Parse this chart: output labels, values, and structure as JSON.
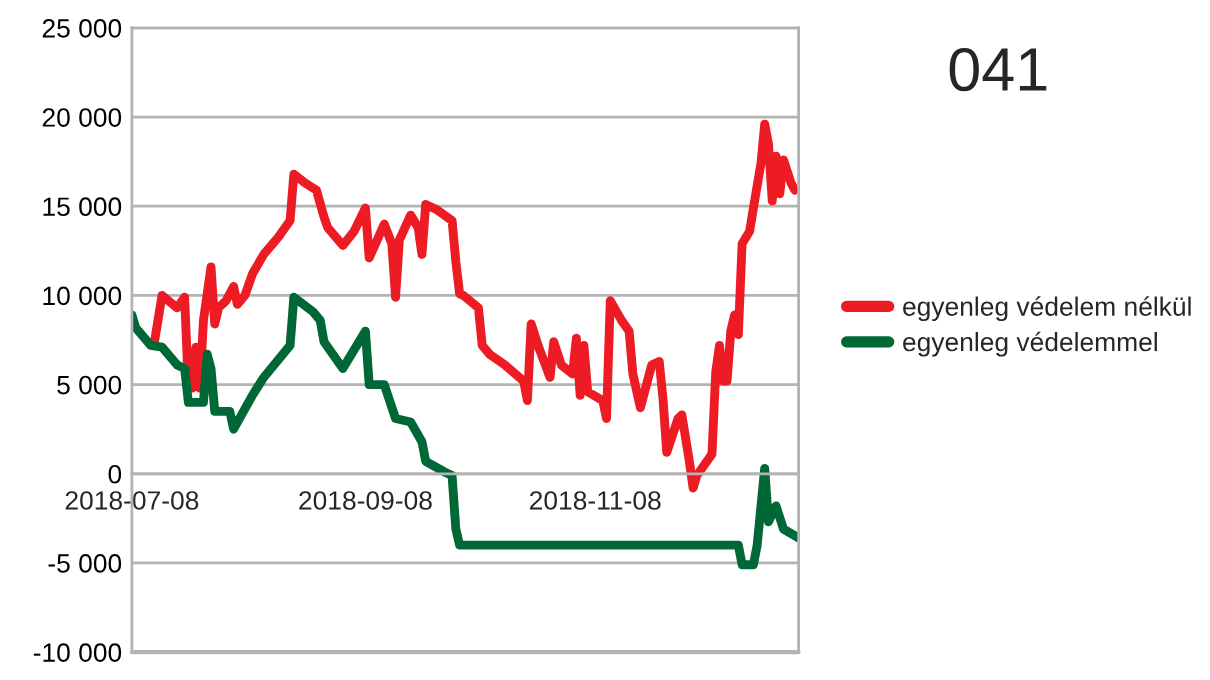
{
  "chart_data": {
    "type": "line",
    "title": "041",
    "xlim": [
      "2018-07-08",
      "2019-01-01"
    ],
    "xticks": [
      "2018-07-08",
      "2018-09-08",
      "2018-11-08"
    ],
    "ylim": [
      -10000,
      25000
    ],
    "yticks": [
      {
        "value": -10000,
        "label": "-10 000"
      },
      {
        "value": -5000,
        "label": "-5 000"
      },
      {
        "value": 0,
        "label": "0"
      },
      {
        "value": 5000,
        "label": "5 000"
      },
      {
        "value": 10000,
        "label": "10 000"
      },
      {
        "value": 15000,
        "label": "15 000"
      },
      {
        "value": 20000,
        "label": "20 000"
      },
      {
        "value": 25000,
        "label": "25 000"
      }
    ],
    "grid": "y",
    "legend": "right",
    "marker": "none",
    "line_style": "solid",
    "series": [
      {
        "name": "egyenleg védelem nélkül",
        "color": "#ed1c24",
        "x": [
          "2018-07-14",
          "2018-07-16",
          "2018-07-20",
          "2018-07-22",
          "2018-07-23",
          "2018-07-24",
          "2018-07-25",
          "2018-07-26",
          "2018-07-27",
          "2018-07-29",
          "2018-07-30",
          "2018-07-31",
          "2018-08-02",
          "2018-08-04",
          "2018-08-05",
          "2018-08-07",
          "2018-08-09",
          "2018-08-12",
          "2018-08-16",
          "2018-08-19",
          "2018-08-20",
          "2018-08-23",
          "2018-08-26",
          "2018-08-28",
          "2018-08-29",
          "2018-09-02",
          "2018-09-05",
          "2018-09-08",
          "2018-09-09",
          "2018-09-13",
          "2018-09-15",
          "2018-09-16",
          "2018-09-17",
          "2018-09-20",
          "2018-09-22",
          "2018-09-23",
          "2018-09-24",
          "2018-09-27",
          "2018-10-01",
          "2018-10-02",
          "2018-10-03",
          "2018-10-04",
          "2018-10-08",
          "2018-10-09",
          "2018-10-11",
          "2018-10-15",
          "2018-10-20",
          "2018-10-21",
          "2018-10-22",
          "2018-10-24",
          "2018-10-27",
          "2018-10-28",
          "2018-10-30",
          "2018-11-02",
          "2018-11-03",
          "2018-11-04",
          "2018-11-05",
          "2018-11-06",
          "2018-11-10",
          "2018-11-11",
          "2018-11-12",
          "2018-11-15",
          "2018-11-17",
          "2018-11-18",
          "2018-11-20",
          "2018-11-23",
          "2018-11-25",
          "2018-11-26",
          "2018-11-27",
          "2018-11-30",
          "2018-12-01",
          "2018-12-03",
          "2018-12-04",
          "2018-12-05",
          "2018-12-09",
          "2018-12-10",
          "2018-12-11",
          "2018-12-12",
          "2018-12-13",
          "2018-12-14",
          "2018-12-15",
          "2018-12-16",
          "2018-12-17",
          "2018-12-19",
          "2018-12-20",
          "2018-12-22",
          "2018-12-23",
          "2018-12-24",
          "2018-12-25",
          "2018-12-26",
          "2018-12-27",
          "2018-12-28",
          "2018-12-30",
          "2018-12-31"
        ],
        "values": [
          7400,
          10000,
          9300,
          9900,
          4800,
          4800,
          7100,
          4800,
          8600,
          11600,
          8400,
          9300,
          9700,
          10500,
          9500,
          10000,
          11200,
          12300,
          13300,
          14200,
          16800,
          16300,
          15900,
          14400,
          13800,
          12800,
          13600,
          14900,
          12100,
          14000,
          12900,
          9900,
          13100,
          14500,
          13800,
          12300,
          15100,
          14800,
          14200,
          11900,
          10100,
          10000,
          9300,
          7200,
          6700,
          6100,
          5200,
          4100,
          8400,
          7100,
          5400,
          7400,
          6100,
          5600,
          7600,
          4400,
          7200,
          4600,
          4100,
          3100,
          9700,
          8600,
          8000,
          5600,
          3700,
          6100,
          6300,
          4200,
          1200,
          3100,
          3300,
          700,
          -800,
          -100,
          1100,
          5700,
          7200,
          5200,
          5200,
          8000,
          8900,
          7800,
          12900,
          13600,
          14900,
          17400,
          19600,
          18500,
          15300,
          17800,
          15700,
          17600,
          16300,
          15900
        ]
      },
      {
        "name": "egyenleg védelemmel",
        "color": "#006837",
        "x": [
          "2018-07-08",
          "2018-07-09",
          "2018-07-13",
          "2018-07-16",
          "2018-07-20",
          "2018-07-22",
          "2018-07-23",
          "2018-07-27",
          "2018-07-28",
          "2018-07-29",
          "2018-07-30",
          "2018-08-03",
          "2018-08-04",
          "2018-08-09",
          "2018-08-12",
          "2018-08-19",
          "2018-08-20",
          "2018-08-25",
          "2018-08-27",
          "2018-08-28",
          "2018-09-02",
          "2018-09-08",
          "2018-09-09",
          "2018-09-13",
          "2018-09-16",
          "2018-09-20",
          "2018-09-23",
          "2018-09-24",
          "2018-09-29",
          "2018-10-01",
          "2018-10-02",
          "2018-10-03",
          "2018-12-16",
          "2018-12-17",
          "2018-12-20",
          "2018-12-21",
          "2018-12-23",
          "2018-12-24",
          "2018-12-26",
          "2018-12-28",
          "2019-01-01"
        ],
        "values": [
          8900,
          8200,
          7200,
          7100,
          6100,
          5900,
          4000,
          4000,
          6700,
          5900,
          3500,
          3500,
          2500,
          4400,
          5400,
          7200,
          9900,
          9100,
          8600,
          7400,
          5900,
          8000,
          5000,
          5000,
          3100,
          2900,
          1800,
          700,
          100,
          -100,
          -3100,
          -4000,
          -4000,
          -5100,
          -5100,
          -4000,
          300,
          -2700,
          -1800,
          -3100,
          -3600
        ]
      }
    ]
  }
}
